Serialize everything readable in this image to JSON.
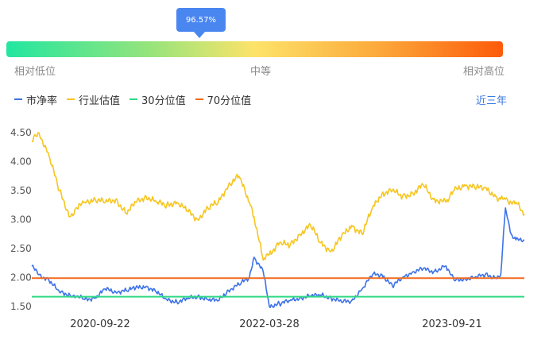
{
  "percentile": {
    "value_label": "96.57%",
    "value": 96.57,
    "low_label": "相对低位",
    "mid_label": "中等",
    "high_label": "相对高位",
    "gradient_colors": [
      "#22e6a0",
      "#9be47a",
      "#fde36a",
      "#fca93a",
      "#fd5a0a"
    ]
  },
  "legend": {
    "items": [
      {
        "label": "市净率",
        "color": "#3d72e8"
      },
      {
        "label": "行业估值",
        "color": "#f7c51e"
      },
      {
        "label": "30分位值",
        "color": "#2fd985"
      },
      {
        "label": "70分位值",
        "color": "#f36a1e"
      }
    ]
  },
  "range_button": "近三年",
  "chart_data": {
    "type": "line",
    "x_tick_labels": [
      "2020-09-22",
      "2022-03-28",
      "2023-09-21"
    ],
    "x_range": [
      "2020-05-11",
      "2024-05-10"
    ],
    "ylim": [
      1.5,
      4.5
    ],
    "y_ticks": [
      1.5,
      2.0,
      2.5,
      3.0,
      3.5,
      4.0,
      4.5
    ],
    "y_tick_labels": [
      "1.50",
      "2.00",
      "2.50",
      "3.00",
      "3.50",
      "4.00",
      "4.50"
    ],
    "grid": false,
    "series": [
      {
        "name": "市净率",
        "color": "#3d72e8",
        "x": [
          "2020-05-11",
          "2020-06-01",
          "2020-07-01",
          "2020-08-01",
          "2020-09-01",
          "2020-09-22",
          "2020-10-15",
          "2020-11-15",
          "2020-12-15",
          "2021-01-15",
          "2021-02-15",
          "2021-03-15",
          "2021-04-15",
          "2021-05-15",
          "2021-06-15",
          "2021-07-15",
          "2021-08-15",
          "2021-09-15",
          "2021-10-15",
          "2021-11-15",
          "2021-12-15",
          "2022-01-15",
          "2022-02-15",
          "2022-03-01",
          "2022-03-28",
          "2022-04-15",
          "2022-05-15",
          "2022-06-15",
          "2022-07-15",
          "2022-08-15",
          "2022-09-15",
          "2022-10-15",
          "2022-11-15",
          "2022-12-15",
          "2023-01-15",
          "2023-02-15",
          "2023-03-15",
          "2023-04-15",
          "2023-05-15",
          "2023-06-15",
          "2023-07-15",
          "2023-08-15",
          "2023-09-21",
          "2023-10-15",
          "2023-11-15",
          "2023-12-15",
          "2024-01-15",
          "2024-02-15",
          "2024-03-01",
          "2024-03-15",
          "2024-04-01",
          "2024-04-15",
          "2024-05-10"
        ],
        "values": [
          2.2,
          2.05,
          1.95,
          1.75,
          1.7,
          1.68,
          1.62,
          1.65,
          1.8,
          1.75,
          1.78,
          1.82,
          1.85,
          1.75,
          1.62,
          1.58,
          1.63,
          1.68,
          1.62,
          1.6,
          1.78,
          1.88,
          2.0,
          2.35,
          2.1,
          1.5,
          1.55,
          1.6,
          1.65,
          1.68,
          1.7,
          1.65,
          1.58,
          1.6,
          1.8,
          2.05,
          2.05,
          1.85,
          2.0,
          2.1,
          2.15,
          2.1,
          2.2,
          1.95,
          1.98,
          2.0,
          2.05,
          2.0,
          2.05,
          3.2,
          2.75,
          2.65,
          2.65
        ]
      },
      {
        "name": "行业估值",
        "color": "#f7c51e",
        "x": [
          "2020-05-11",
          "2020-06-01",
          "2020-07-01",
          "2020-08-01",
          "2020-09-01",
          "2020-09-22",
          "2020-10-15",
          "2020-11-15",
          "2020-12-15",
          "2021-01-15",
          "2021-02-15",
          "2021-03-15",
          "2021-04-15",
          "2021-05-15",
          "2021-06-15",
          "2021-07-15",
          "2021-08-15",
          "2021-09-15",
          "2021-10-15",
          "2021-11-15",
          "2021-12-15",
          "2022-01-15",
          "2022-02-15",
          "2022-03-01",
          "2022-03-28",
          "2022-04-15",
          "2022-05-15",
          "2022-06-15",
          "2022-07-15",
          "2022-08-15",
          "2022-09-15",
          "2022-10-15",
          "2022-11-15",
          "2022-12-15",
          "2023-01-15",
          "2023-02-15",
          "2023-03-15",
          "2023-04-15",
          "2023-05-15",
          "2023-06-15",
          "2023-07-15",
          "2023-08-15",
          "2023-09-21",
          "2023-10-15",
          "2023-11-15",
          "2023-12-15",
          "2024-01-15",
          "2024-02-15",
          "2024-03-01",
          "2024-03-15",
          "2024-04-01",
          "2024-04-15",
          "2024-05-10"
        ],
        "values": [
          4.35,
          4.5,
          4.1,
          3.5,
          3.05,
          3.2,
          3.3,
          3.35,
          3.3,
          3.35,
          3.1,
          3.3,
          3.4,
          3.3,
          3.25,
          3.3,
          3.15,
          3.0,
          3.2,
          3.3,
          3.6,
          3.75,
          3.3,
          3.05,
          2.3,
          2.4,
          2.6,
          2.55,
          2.75,
          2.9,
          2.6,
          2.45,
          2.7,
          2.9,
          2.75,
          3.2,
          3.45,
          3.5,
          3.4,
          3.45,
          3.6,
          3.35,
          3.3,
          3.5,
          3.6,
          3.55,
          3.55,
          3.4,
          3.35,
          3.35,
          3.3,
          3.3,
          3.1
        ]
      },
      {
        "name": "30分位值",
        "color": "#2fd985",
        "x": [
          "2020-05-11",
          "2024-05-10"
        ],
        "values": [
          1.67,
          1.67
        ]
      },
      {
        "name": "70分位值",
        "color": "#f36a1e",
        "x": [
          "2020-05-11",
          "2024-05-10"
        ],
        "values": [
          1.99,
          1.99
        ]
      }
    ]
  }
}
